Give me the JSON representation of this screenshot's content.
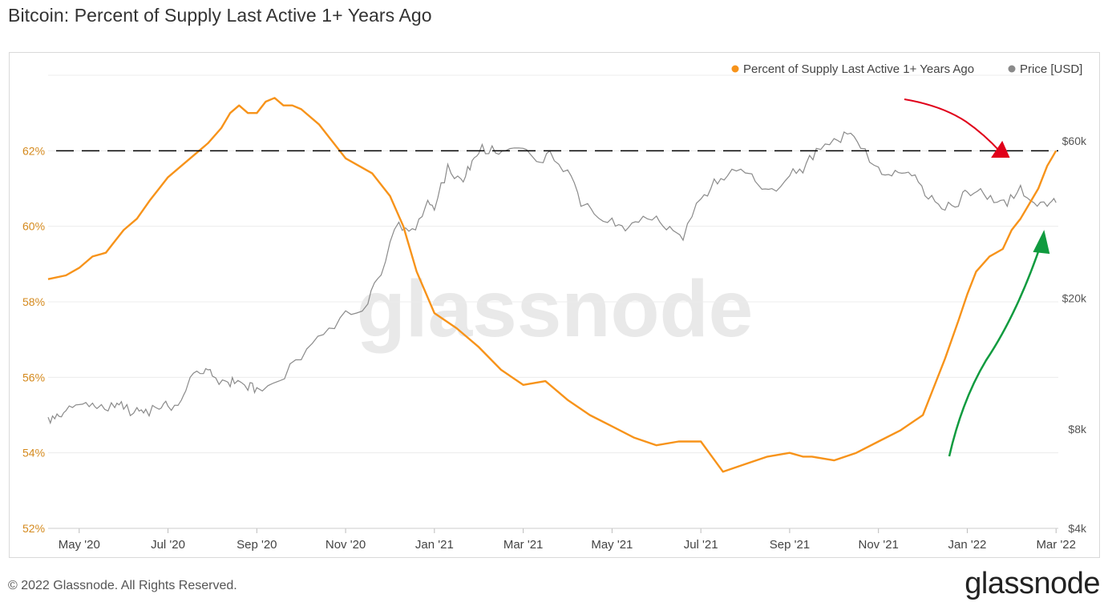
{
  "title": "Bitcoin: Percent of Supply Last Active 1+ Years Ago",
  "footer": "© 2022 Glassnode. All Rights Reserved.",
  "brand": "glassnode",
  "watermark": "glassnode",
  "colors": {
    "supply": "#f7931a",
    "price": "#8a8a8a",
    "dashed": "#000000",
    "red_arrow": "#e0001a",
    "green_arrow": "#109b3f",
    "grid": "#ececec"
  },
  "chart_data": {
    "type": "line",
    "title": "Bitcoin: Percent of Supply Last Active 1+ Years Ago",
    "legend_position": "top-right",
    "x_ticks": [
      "May '20",
      "Jul '20",
      "Sep '20",
      "Nov '20",
      "Jan '21",
      "Mar '21",
      "May '21",
      "Jul '21",
      "Sep '21",
      "Nov '21",
      "Jan '22",
      "Mar '22"
    ],
    "x_range_months": [
      -0.7,
      22.05
    ],
    "y_left": {
      "label": "",
      "ticks": [
        "52%",
        "54%",
        "56%",
        "58%",
        "60%",
        "62%"
      ],
      "tick_values": [
        52,
        54,
        56,
        58,
        60,
        62
      ],
      "range": [
        52,
        64
      ]
    },
    "y_right": {
      "label": "",
      "scale": "log",
      "ticks": [
        "$4k",
        "$8k",
        "$20k",
        "$60k"
      ],
      "tick_values": [
        4000,
        8000,
        20000,
        60000
      ],
      "range": [
        4000,
        95000
      ]
    },
    "reference_line": {
      "value": 62,
      "style": "dashed",
      "axis": "left"
    },
    "series": [
      {
        "name": "Percent of Supply Last Active 1+ Years Ago",
        "axis": "left",
        "color": "#f7931a",
        "t": [
          -0.7,
          -0.3,
          0.0,
          0.3,
          0.6,
          0.8,
          1.0,
          1.3,
          1.6,
          1.8,
          2.0,
          2.3,
          2.6,
          2.9,
          3.2,
          3.4,
          3.6,
          3.8,
          4.0,
          4.2,
          4.4,
          4.6,
          4.8,
          5.0,
          5.4,
          5.8,
          6.0,
          6.3,
          6.6,
          7.0,
          7.3,
          7.6,
          8.0,
          8.5,
          9.0,
          9.5,
          10.0,
          10.5,
          11.0,
          11.5,
          12.0,
          12.5,
          13.0,
          13.5,
          14.0,
          14.5,
          15.0,
          15.5,
          16.0,
          16.3,
          16.5,
          17.0,
          17.5,
          18.0,
          18.5,
          19.0,
          19.5,
          19.8,
          20.0,
          20.2,
          20.5,
          20.8,
          21.0,
          21.2,
          21.4,
          21.6,
          21.8,
          21.9,
          22.0
        ],
        "values": [
          58.6,
          58.7,
          58.9,
          59.2,
          59.3,
          59.6,
          59.9,
          60.2,
          60.7,
          61.0,
          61.3,
          61.6,
          61.9,
          62.2,
          62.6,
          63.0,
          63.2,
          63.0,
          63.0,
          63.3,
          63.4,
          63.2,
          63.2,
          63.1,
          62.7,
          62.1,
          61.8,
          61.6,
          61.4,
          60.8,
          60.0,
          58.8,
          57.7,
          57.3,
          56.8,
          56.2,
          55.8,
          55.9,
          55.4,
          55.0,
          54.7,
          54.4,
          54.2,
          54.3,
          54.3,
          53.5,
          53.7,
          53.9,
          54.0,
          53.9,
          53.9,
          53.8,
          54.0,
          54.3,
          54.6,
          55.0,
          56.5,
          57.5,
          58.2,
          58.8,
          59.2,
          59.4,
          59.9,
          60.2,
          60.6,
          61.0,
          61.6,
          61.8,
          62.0
        ]
      },
      {
        "name": "Price [USD]",
        "axis": "right",
        "color": "#8a8a8a",
        "t": [
          -0.7,
          -0.5,
          -0.3,
          0.0,
          0.3,
          0.5,
          0.8,
          1.0,
          1.3,
          1.5,
          1.8,
          2.0,
          2.3,
          2.5,
          2.8,
          3.0,
          3.3,
          3.5,
          3.8,
          4.0,
          4.5,
          5.0,
          5.5,
          6.0,
          6.5,
          6.8,
          7.2,
          7.5,
          7.8,
          8.0,
          8.3,
          8.6,
          8.8,
          9.0,
          9.3,
          9.6,
          10.0,
          10.3,
          10.6,
          11.0,
          11.3,
          11.6,
          12.0,
          12.3,
          12.6,
          13.0,
          13.3,
          13.6,
          14.0,
          14.3,
          14.6,
          15.0,
          15.3,
          15.6,
          16.0,
          16.3,
          16.6,
          17.0,
          17.3,
          17.6,
          18.0,
          18.3,
          18.6,
          18.9,
          19.2,
          19.5,
          19.8,
          20.0,
          20.3,
          20.6,
          20.9,
          21.2,
          21.5,
          21.8,
          22.0
        ],
        "values": [
          8700,
          8900,
          9100,
          9500,
          9600,
          9500,
          9300,
          9200,
          9300,
          9200,
          9200,
          9400,
          9800,
          11500,
          11800,
          11600,
          11200,
          11000,
          10500,
          10700,
          11200,
          13000,
          15500,
          18300,
          19200,
          23500,
          34000,
          32500,
          38000,
          37000,
          51000,
          46000,
          49000,
          55000,
          58000,
          56000,
          57000,
          52000,
          56000,
          49000,
          38000,
          36000,
          35000,
          32000,
          34000,
          35500,
          33000,
          30000,
          40000,
          46000,
          47000,
          48000,
          44000,
          43000,
          47000,
          48000,
          57000,
          61000,
          63000,
          57000,
          50000,
          47000,
          48000,
          45000,
          41000,
          37000,
          38000,
          42000,
          43000,
          39000,
          38000,
          44000,
          39000,
          38000,
          39000
        ]
      }
    ],
    "annotations": [
      {
        "type": "arrow",
        "color": "red",
        "description": "pointing down toward 62% level near Feb '22"
      },
      {
        "type": "arrow",
        "color": "green",
        "description": "pointing up toward supply line near Mar '22"
      }
    ]
  }
}
